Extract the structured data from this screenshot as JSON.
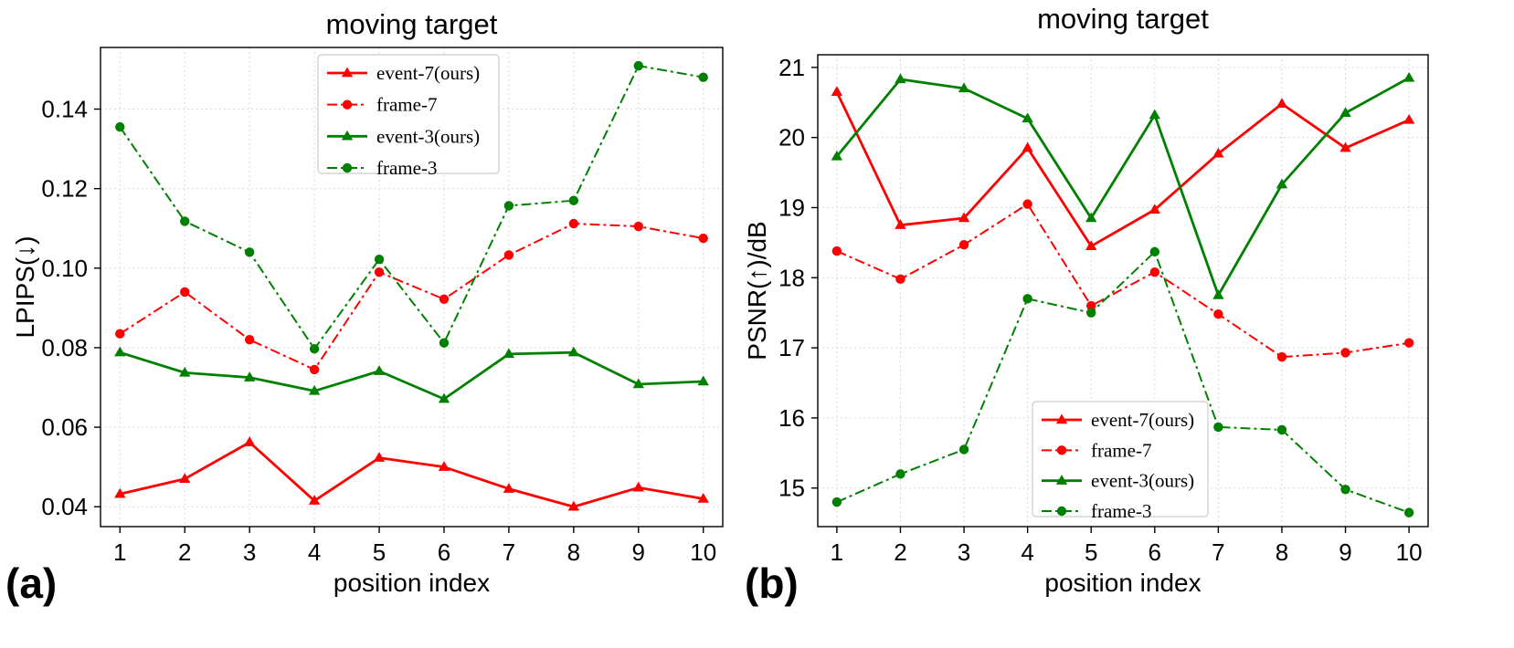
{
  "chart_data": [
    {
      "type": "line",
      "panel_label": "(a)",
      "title": "moving target",
      "xlabel": "position index",
      "ylabel": "LPIPS(↓)",
      "x": [
        1,
        2,
        3,
        4,
        5,
        6,
        7,
        8,
        9,
        10
      ],
      "xlim": [
        0.7,
        10.3
      ],
      "ylim": [
        0.035,
        0.1555
      ],
      "yticks": [
        0.04,
        0.06,
        0.08,
        0.1,
        0.12,
        0.14
      ],
      "ytick_labels": [
        "0.04",
        "0.06",
        "0.08",
        "0.10",
        "0.12",
        "0.14"
      ],
      "grid": true,
      "legend_position": "top-center",
      "series": [
        {
          "name": "event-7(ours)",
          "color": "#ff0000",
          "linestyle": "solid",
          "marker": "triangle",
          "values": [
            0.0432,
            0.047,
            0.0562,
            0.0415,
            0.0523,
            0.05,
            0.0445,
            0.04,
            0.0448,
            0.042
          ]
        },
        {
          "name": "frame-7",
          "color": "#ff0000",
          "linestyle": "dashdot",
          "marker": "circle",
          "values": [
            0.0835,
            0.094,
            0.082,
            0.0745,
            0.099,
            0.0922,
            0.1033,
            0.1112,
            0.1105,
            0.1075
          ]
        },
        {
          "name": "event-3(ours)",
          "color": "#008000",
          "linestyle": "solid",
          "marker": "triangle",
          "values": [
            0.0788,
            0.0737,
            0.0725,
            0.0691,
            0.0741,
            0.0671,
            0.0784,
            0.0788,
            0.0708,
            0.0715
          ]
        },
        {
          "name": "frame-3",
          "color": "#008000",
          "linestyle": "dashdot",
          "marker": "circle",
          "values": [
            0.1355,
            0.1118,
            0.104,
            0.0797,
            0.1022,
            0.0812,
            0.1157,
            0.117,
            0.1509,
            0.148
          ]
        }
      ]
    },
    {
      "type": "line",
      "panel_label": "(b)",
      "title": "moving target",
      "xlabel": "position index",
      "ylabel": "PSNR(↑)/dB",
      "x": [
        1,
        2,
        3,
        4,
        5,
        6,
        7,
        8,
        9,
        10
      ],
      "xlim": [
        0.7,
        10.3
      ],
      "ylim": [
        14.45,
        21.18
      ],
      "yticks": [
        15,
        16,
        17,
        18,
        19,
        20,
        21
      ],
      "ytick_labels": [
        "15",
        "16",
        "17",
        "18",
        "19",
        "20",
        "21"
      ],
      "grid": true,
      "legend_position": "bottom-center",
      "series": [
        {
          "name": "event-7(ours)",
          "color": "#ff0000",
          "linestyle": "solid",
          "marker": "triangle",
          "values": [
            20.65,
            18.75,
            18.85,
            19.85,
            18.45,
            18.97,
            19.77,
            20.48,
            19.85,
            20.25
          ]
        },
        {
          "name": "frame-7",
          "color": "#ff0000",
          "linestyle": "dashdot",
          "marker": "circle",
          "values": [
            18.38,
            17.98,
            18.47,
            19.05,
            17.6,
            18.08,
            17.48,
            16.87,
            16.93,
            17.07
          ]
        },
        {
          "name": "event-3(ours)",
          "color": "#008000",
          "linestyle": "solid",
          "marker": "triangle",
          "values": [
            19.73,
            20.83,
            20.7,
            20.27,
            18.85,
            20.32,
            17.75,
            19.33,
            20.35,
            20.85
          ]
        },
        {
          "name": "frame-3",
          "color": "#008000",
          "linestyle": "dashdot",
          "marker": "circle",
          "values": [
            14.8,
            15.2,
            15.55,
            17.7,
            17.5,
            18.37,
            15.87,
            15.83,
            14.98,
            14.65
          ]
        }
      ]
    }
  ]
}
